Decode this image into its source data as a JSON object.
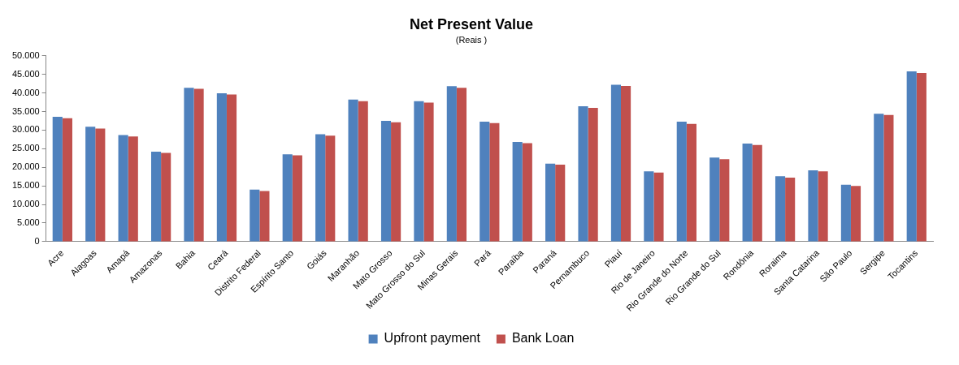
{
  "chart_data": {
    "type": "bar",
    "title": "Net Present Value",
    "subtitle": "(Reais )",
    "categories": [
      "Acre",
      "Alagoas",
      "Amapá",
      "Amazonas",
      "Bahia",
      "Ceará",
      "Distrito Federal",
      "Espírito Santo",
      "Goiás",
      "Maranhão",
      "Mato Grosso",
      "Mato Grosso do Sul",
      "Minas Gerais",
      "Pará",
      "Paraíba",
      "Paraná",
      "Pernambuco",
      "Piauí",
      "Rio de Janeiro",
      "Rio Grande do Norte",
      "Rio Grande do Sul",
      "Rondônia",
      "Roraima",
      "Santa Catarina",
      "São Paulo",
      "Sergipe",
      "Tocantins"
    ],
    "series": [
      {
        "name": "Upfront payment",
        "color": "#4f81bd",
        "values": [
          33600,
          30900,
          28700,
          24200,
          41400,
          39900,
          14000,
          23500,
          28900,
          38200,
          32500,
          37800,
          41800,
          32300,
          26800,
          21000,
          36400,
          42200,
          18900,
          32300,
          22600,
          26400,
          17600,
          19200,
          15300,
          34400,
          45800
        ]
      },
      {
        "name": "Bank Loan",
        "color": "#c0504d",
        "values": [
          33200,
          30400,
          28300,
          23900,
          41100,
          39600,
          13600,
          23200,
          28500,
          37800,
          32100,
          37400,
          41400,
          31900,
          26500,
          20700,
          36000,
          41900,
          18600,
          31700,
          22200,
          26000,
          17200,
          18900,
          15000,
          34100,
          45400
        ]
      }
    ],
    "ylim": [
      0,
      50000
    ],
    "yticks": [
      {
        "value": 0,
        "label": "0"
      },
      {
        "value": 5000,
        "label": "5.000"
      },
      {
        "value": 10000,
        "label": "10.000"
      },
      {
        "value": 15000,
        "label": "15.000"
      },
      {
        "value": 20000,
        "label": "20.000"
      },
      {
        "value": 25000,
        "label": "25.000"
      },
      {
        "value": 30000,
        "label": "30.000"
      },
      {
        "value": 35000,
        "label": "35.000"
      },
      {
        "value": 40000,
        "label": "40.000"
      },
      {
        "value": 45000,
        "label": "45.000"
      },
      {
        "value": 50000,
        "label": "50.000"
      }
    ],
    "grid": false,
    "legend": "bottom"
  }
}
